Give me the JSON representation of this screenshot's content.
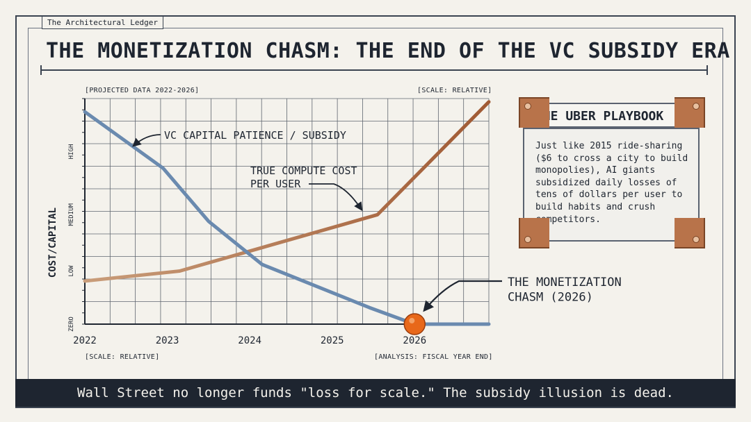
{
  "brand": "The Architectural Ledger",
  "title": "THE MONETIZATION CHASM: THE END OF THE VC SUBSIDY ERA",
  "chart_labels": {
    "top_left": "[PROJECTED DATA 2022-2026]",
    "top_right": "[SCALE: RELATIVE]",
    "bottom_left": "[SCALE: RELATIVE]",
    "bottom_right": "[ANALYSIS: FISCAL YEAR END]"
  },
  "callout": {
    "title": "THE UBER PLAYBOOK",
    "text": "Just like 2015 ride-sharing ($6 to cross a city to build monopolies), AI giants subsidized daily losses of tens of dollars per user to build habits and crush competitors."
  },
  "footer": "Wall Street no longer funds \"loss for scale.\" The subsidy illusion is dead.",
  "colors": {
    "subsidy": "#6a8aaf",
    "compute_start": "#c99d7a",
    "compute_end": "#a05a34",
    "chasm_marker": "#e8681a",
    "ink": "#1e2530",
    "grid": "#3a4350"
  },
  "chart_data": {
    "type": "line",
    "ylabel": "COST/CAPITAL",
    "y_ticks": [
      "ZERO",
      "LOW",
      "MEDIUM",
      "HIGH"
    ],
    "x_ticks": [
      "2022",
      "2023",
      "2024",
      "2025",
      "2026"
    ],
    "ylim": [
      0,
      3.4
    ],
    "xlim": [
      2022,
      2026.9
    ],
    "grid": true,
    "series": [
      {
        "name": "VC CAPITAL PATIENCE / SUBSIDY",
        "color": "#6a8aaf",
        "points": [
          [
            2022,
            3.2
          ],
          [
            2022.95,
            2.35
          ],
          [
            2023.5,
            1.55
          ],
          [
            2024.15,
            0.9
          ],
          [
            2025.45,
            0.25
          ],
          [
            2026,
            0.0
          ],
          [
            2026.9,
            0.0
          ]
        ]
      },
      {
        "name": "TRUE COMPUTE COST PER USER",
        "color": "#b87a55",
        "points": [
          [
            2022,
            0.65
          ],
          [
            2023.15,
            0.8
          ],
          [
            2025.55,
            1.65
          ],
          [
            2026.9,
            3.35
          ]
        ]
      }
    ],
    "annotations": [
      {
        "text": [
          "VC CAPITAL PATIENCE / SUBSIDY"
        ],
        "target": "subsidy"
      },
      {
        "text": [
          "TRUE COMPUTE COST",
          "PER USER"
        ],
        "target": "compute"
      },
      {
        "text": [
          "THE MONETIZATION",
          "CHASM (2026)"
        ],
        "point": [
          2026,
          0.0
        ]
      }
    ]
  }
}
